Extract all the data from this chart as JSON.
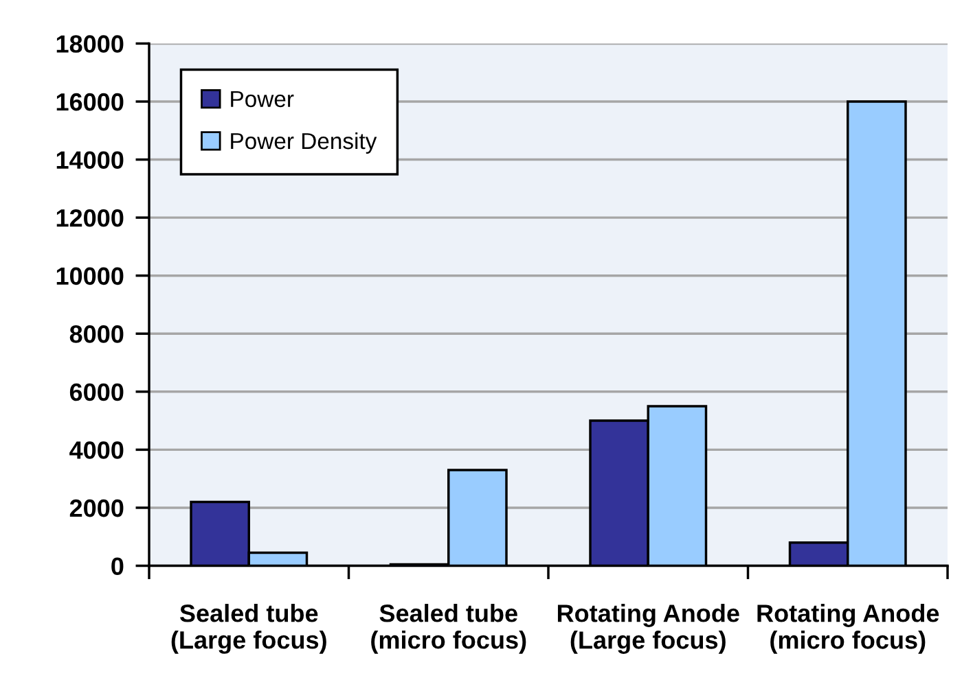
{
  "chart_data": {
    "type": "bar",
    "categories": [
      "Sealed tube\n(Large focus)",
      "Sealed tube\n(micro focus)",
      "Rotating Anode\n(Large focus)",
      "Rotating Anode\n(micro focus)"
    ],
    "series": [
      {
        "name": "Power",
        "color": "#333399",
        "values": [
          2200,
          50,
          5000,
          800
        ]
      },
      {
        "name": "Power Density",
        "color": "#99ccff",
        "values": [
          450,
          3300,
          5500,
          16000
        ]
      }
    ],
    "ylim": [
      0,
      18000
    ],
    "yticks": [
      0,
      2000,
      4000,
      6000,
      8000,
      10000,
      12000,
      14000,
      16000,
      18000
    ],
    "grid": "y",
    "legend": "top left"
  }
}
